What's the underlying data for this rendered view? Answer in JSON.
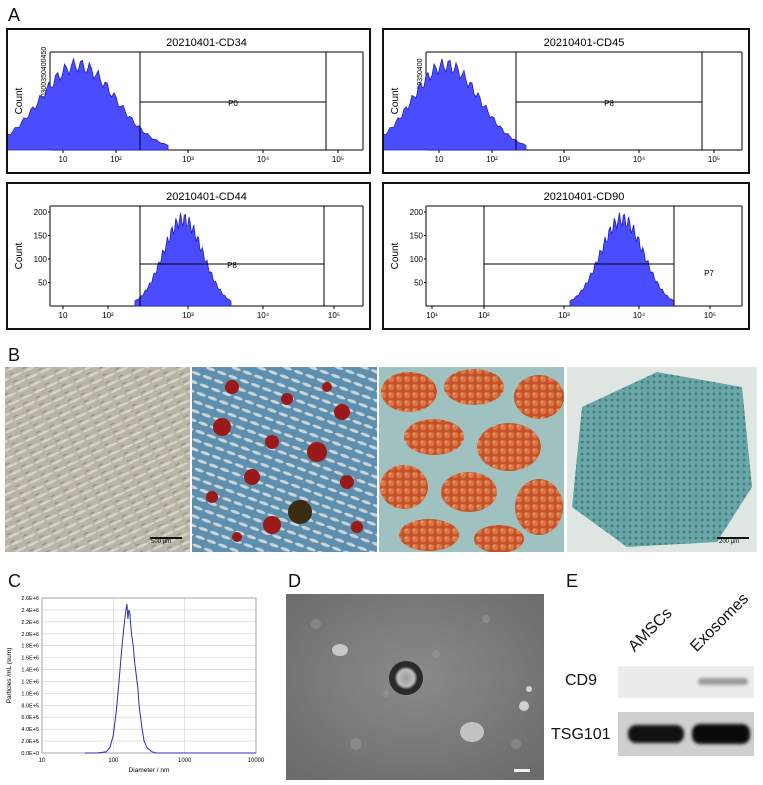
{
  "panels": {
    "A": "A",
    "B": "B",
    "C": "C",
    "D": "D",
    "E": "E"
  },
  "flow": [
    {
      "title": "20210401-CD34",
      "gate": "P0",
      "ylabel": "Count",
      "yticks": "50100150200250300350400450",
      "xticks": [
        "10",
        "10²",
        "10³",
        "10⁴",
        "10⁵"
      ],
      "color": "#4a4dff"
    },
    {
      "title": "20210401-CD45",
      "gate": "P8",
      "ylabel": "Count",
      "yticks": "50100150200250300350400",
      "xticks": [
        "10",
        "10²",
        "10³",
        "10⁴",
        "10⁵"
      ],
      "color": "#4a4dff"
    },
    {
      "title": "20210401-CD44",
      "gate": "P8",
      "ylabel": "Count",
      "yticks": [
        "50",
        "100",
        "150",
        "200"
      ],
      "xticks": [
        "10",
        "10²",
        "10³",
        "10⁴",
        "10⁵"
      ],
      "color": "#4a4dff"
    },
    {
      "title": "20210401-CD90",
      "gate": "P7",
      "ylabel": "Count",
      "yticks": [
        "50",
        "100",
        "150",
        "200"
      ],
      "xticks": [
        "10¹",
        "10²",
        "10³",
        "10⁴",
        "10⁵"
      ],
      "color": "#4a4dff"
    }
  ],
  "micrographs": {
    "scale_1": "500 μm",
    "scale_4": "200 μm"
  },
  "chart_data": {
    "type": "line",
    "xlabel": "Diameter / nm",
    "ylabel": "Particles /mL (sum)",
    "x_scale": "log",
    "xlim": [
      10,
      10000
    ],
    "ylim": [
      0,
      2600000
    ],
    "xticks": [
      "10",
      "100",
      "1000",
      "10000"
    ],
    "yticks": [
      "0.0E+0",
      "2.0E+5",
      "4.0E+5",
      "6.0E+5",
      "8.0E+5",
      "1.0E+6",
      "1.2E+6",
      "1.4E+6",
      "1.6E+6",
      "1.8E+6",
      "2.0E+6",
      "2.2E+6",
      "2.4E+6",
      "2.6E+6"
    ],
    "series": [
      {
        "color": "#2d2db5",
        "x": [
          40,
          60,
          80,
          90,
          100,
          110,
          120,
          130,
          140,
          150,
          155,
          160,
          165,
          170,
          175,
          180,
          190,
          200,
          210,
          220,
          230,
          250,
          270,
          300,
          350,
          400,
          500,
          700,
          1000,
          2000,
          5000,
          10000
        ],
        "y": [
          0,
          0,
          20000,
          100000,
          300000,
          700000,
          1200000,
          1700000,
          2100000,
          2400000,
          2500000,
          2250000,
          2400000,
          2350000,
          2150000,
          2000000,
          1800000,
          1500000,
          1300000,
          1100000,
          800000,
          450000,
          200000,
          80000,
          20000,
          0,
          0,
          0,
          0,
          0,
          0,
          0
        ]
      }
    ]
  },
  "tem": {
    "scale": ""
  },
  "western": {
    "columns": [
      "AMSCs",
      "Exosomes"
    ],
    "rows": [
      "CD9",
      "TSG101"
    ]
  }
}
